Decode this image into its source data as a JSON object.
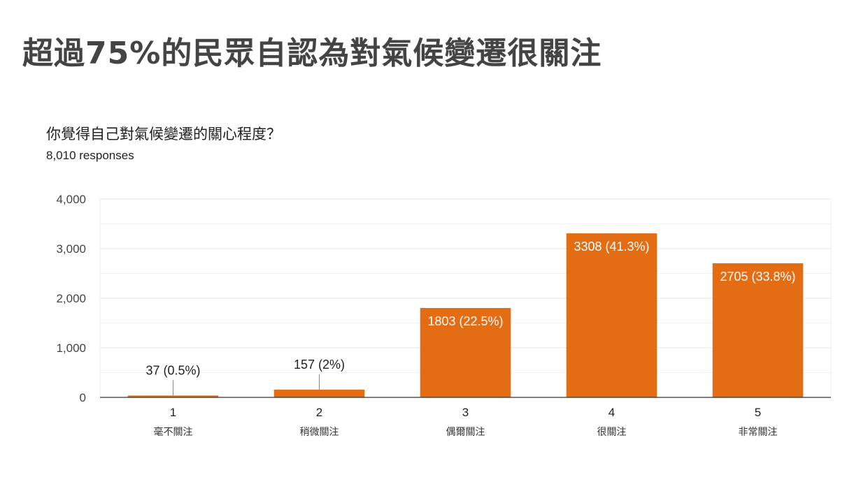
{
  "slide_title": "超過75%的民眾自認為對氣候變遷很關注",
  "question": "你覺得自己對氣候變遷的關心程度？",
  "responses": "8,010 responses",
  "colors": {
    "bar": "#e46c13",
    "grid": "#eeeeee",
    "axis": "#333333"
  },
  "chart_data": {
    "type": "bar",
    "categories": [
      "1",
      "2",
      "3",
      "4",
      "5"
    ],
    "category_sublabels": [
      "毫不關注",
      "稍微關注",
      "偶爾關注",
      "很關注",
      "非常關注"
    ],
    "values": [
      37,
      157,
      1803,
      3308,
      2705
    ],
    "data_labels": [
      "37 (0.5%)",
      "157 (2%)",
      "1803 (22.5%)",
      "3308 (41.3%)",
      "2705 (33.8%)"
    ],
    "ylim": [
      0,
      4000
    ],
    "yticks": [
      0,
      1000,
      2000,
      3000,
      4000
    ],
    "ytick_labels": [
      "0",
      "1,000",
      "2,000",
      "3,000",
      "4,000"
    ],
    "grid": true,
    "legend": "none"
  }
}
